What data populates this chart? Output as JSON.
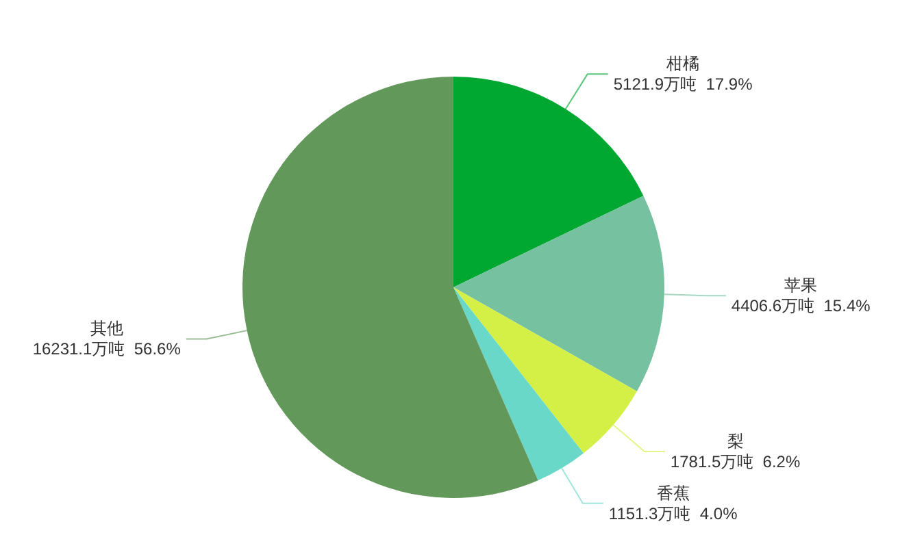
{
  "chart_data": {
    "type": "pie",
    "categories": [
      "柑橘",
      "苹果",
      "梨",
      "香蕉",
      "其他"
    ],
    "values": [
      5121.9,
      4406.6,
      1781.5,
      1151.3,
      16231.1
    ],
    "colors": [
      "#00a832",
      "#76c2a0",
      "#d4f046",
      "#6ad8c8",
      "#62985a"
    ],
    "value_labels": [
      "5121.9万吨  17.9%",
      "4406.6万吨  15.4%",
      "1781.5万吨  6.2%",
      "1151.3万吨  4.0%",
      "16231.1万吨  56.6%"
    ]
  }
}
